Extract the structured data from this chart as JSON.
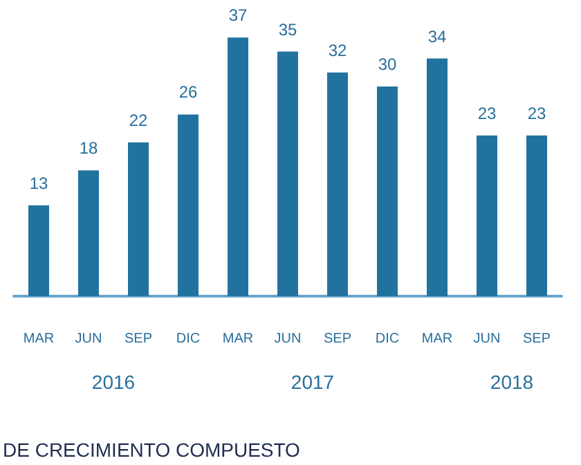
{
  "chart_data": {
    "type": "bar",
    "categories": [
      "MAR",
      "JUN",
      "SEP",
      "DIC",
      "MAR",
      "JUN",
      "SEP",
      "DIC",
      "MAR",
      "JUN",
      "SEP"
    ],
    "values": [
      13,
      18,
      22,
      26,
      37,
      35,
      32,
      30,
      34,
      23,
      23
    ],
    "color": "#21729f",
    "data_labels": true,
    "annotations": [
      "2016",
      "2017",
      "2018",
      "DE CRECIMIENTO COMPUESTO"
    ]
  }
}
